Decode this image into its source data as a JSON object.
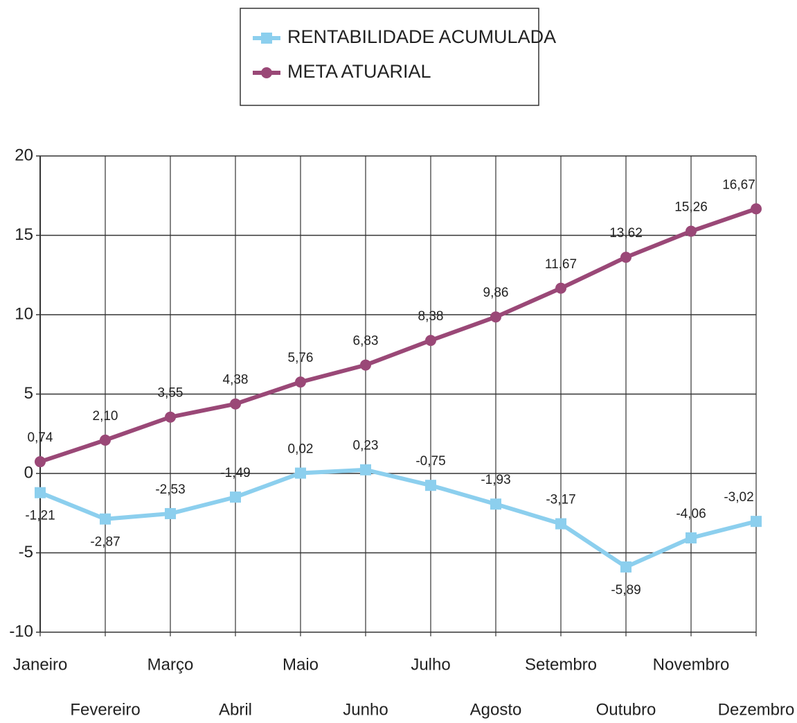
{
  "chart_data": {
    "type": "line",
    "categories": [
      "Janeiro",
      "Fevereiro",
      "Março",
      "Abril",
      "Maio",
      "Junho",
      "Julho",
      "Agosto",
      "Setembro",
      "Outubro",
      "Novembro",
      "Dezembro"
    ],
    "series": [
      {
        "name": "RENTABILIDADE ACUMULADA",
        "color": "#8ccfee",
        "marker": "square",
        "values": [
          -1.21,
          -2.87,
          -2.53,
          -1.49,
          0.02,
          0.23,
          -0.75,
          -1.93,
          -3.17,
          -5.89,
          -4.06,
          -3.02
        ],
        "value_labels": [
          "-1,21",
          "-2,87",
          "-2,53",
          "-1,49",
          "0,02",
          "0,23",
          "-0,75",
          "-1,93",
          "-3,17",
          "-5,89",
          "-4,06",
          "-3,02"
        ]
      },
      {
        "name": "META ATUARIAL",
        "color": "#9a4877",
        "marker": "circle",
        "values": [
          0.74,
          2.1,
          3.55,
          4.38,
          5.76,
          6.83,
          8.38,
          9.86,
          11.67,
          13.62,
          15.26,
          16.67
        ],
        "value_labels": [
          "0,74",
          "2,10",
          "3,55",
          "4,38",
          "5,76",
          "6,83",
          "8,38",
          "9,86",
          "11,67",
          "13,62",
          "15,26",
          "16,67"
        ]
      }
    ],
    "ylim": [
      -10,
      20
    ],
    "yticks": [
      -10,
      -5,
      0,
      5,
      10,
      15,
      20
    ],
    "grid": true,
    "legend": "top"
  }
}
